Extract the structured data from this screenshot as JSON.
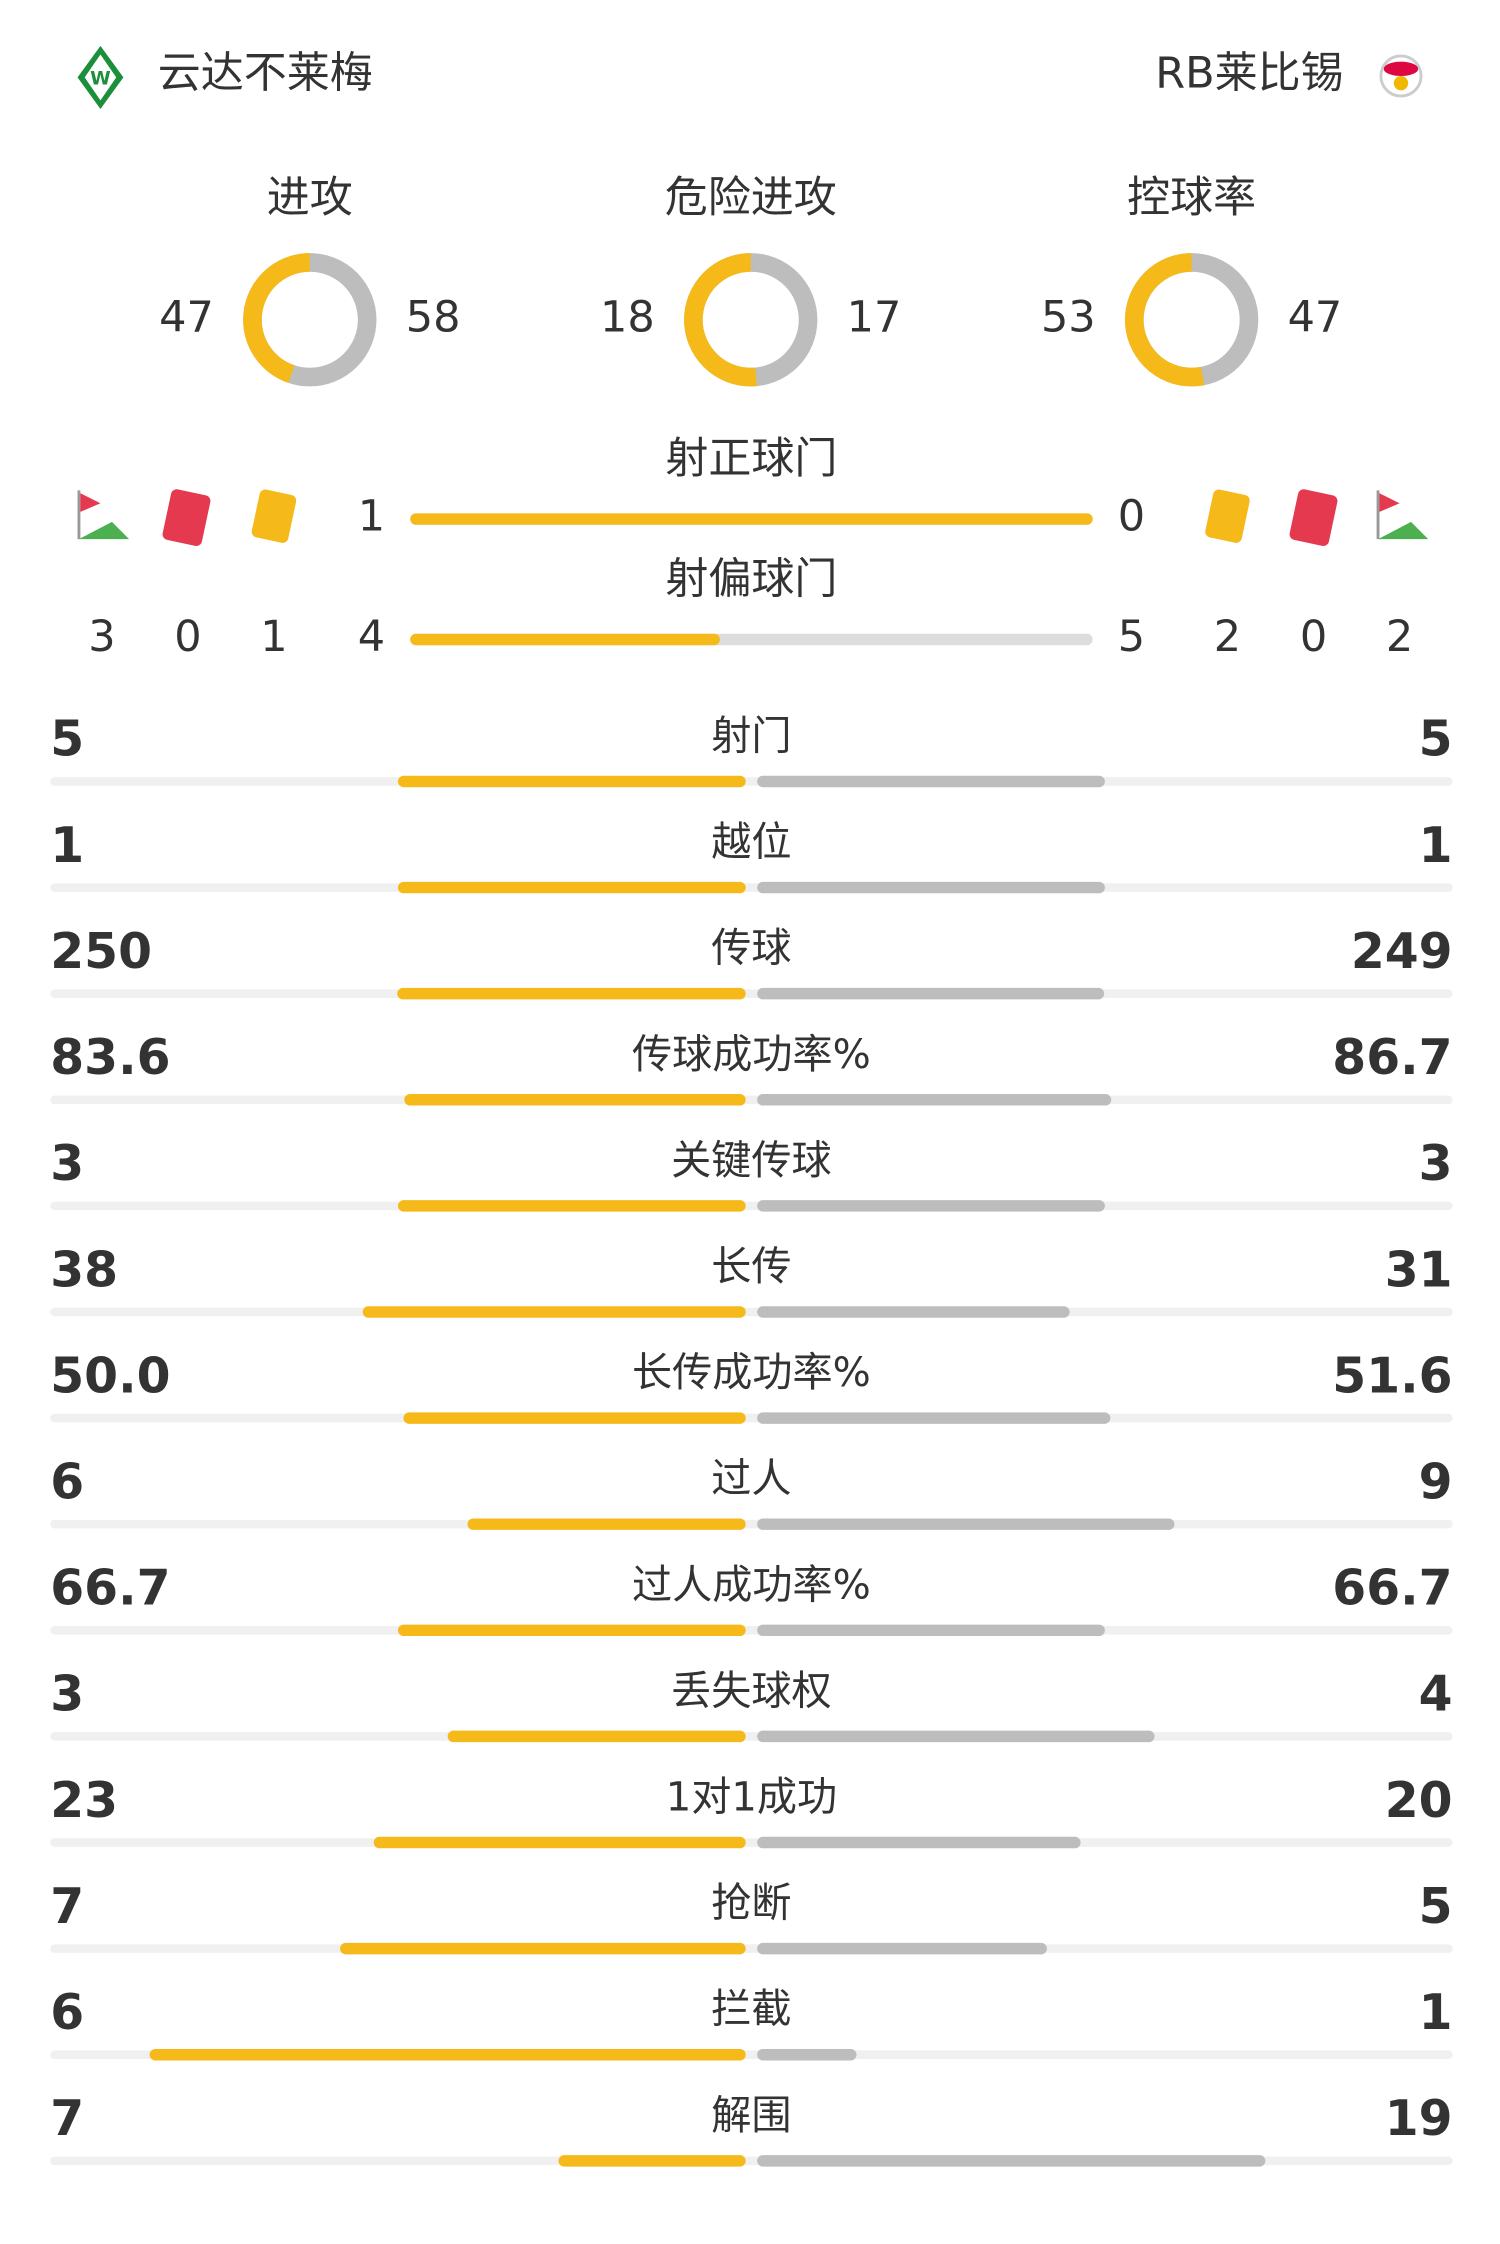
{
  "header": {
    "home": "云达不莱梅",
    "away": "RB莱比锡"
  },
  "donuts": [
    {
      "label": "进攻",
      "home": 47,
      "away": 58
    },
    {
      "label": "危险进攻",
      "home": 18,
      "away": 17
    },
    {
      "label": "控球率",
      "home": 53,
      "away": 47
    }
  ],
  "shots": [
    {
      "label": "射正球门",
      "home": 1,
      "away": 0
    },
    {
      "label": "射偏球门",
      "home": 4,
      "away": 5
    }
  ],
  "cards": {
    "home": {
      "corners": 3,
      "red": 0,
      "yellow": 1
    },
    "away": {
      "yellow": 2,
      "red": 0,
      "corners": 2
    }
  },
  "stats": {
    "rows": [
      {
        "label": "射门",
        "home": "5",
        "away": "5"
      },
      {
        "label": "越位",
        "home": "1",
        "away": "1"
      },
      {
        "label": "传球",
        "home": "250",
        "away": "249"
      },
      {
        "label": "传球成功率%",
        "home": "83.6",
        "away": "86.7"
      },
      {
        "label": "关键传球",
        "home": "3",
        "away": "3"
      },
      {
        "label": "长传",
        "home": "38",
        "away": "31"
      },
      {
        "label": "长传成功率%",
        "home": "50.0",
        "away": "51.6"
      },
      {
        "label": "过人",
        "home": "6",
        "away": "9"
      },
      {
        "label": "过人成功率%",
        "home": "66.7",
        "away": "66.7"
      },
      {
        "label": "丢失球权",
        "home": "3",
        "away": "4"
      },
      {
        "label": "1对1成功",
        "home": "23",
        "away": "20"
      },
      {
        "label": "抢断",
        "home": "7",
        "away": "5"
      },
      {
        "label": "拦截",
        "home": "6",
        "away": "1"
      },
      {
        "label": "解围",
        "home": "7",
        "away": "19"
      }
    ]
  }
}
